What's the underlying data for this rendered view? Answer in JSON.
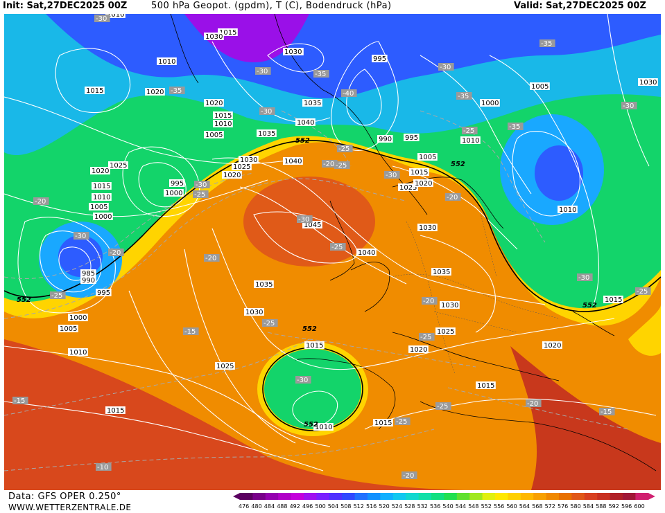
{
  "header": {
    "init": "Init: Sat,27DEC2025 00Z",
    "title": "500 hPa Geopot. (gpdm), T (C), Bodendruck (hPa)",
    "valid": "Valid: Sat,27DEC2025 00Z"
  },
  "footer": {
    "data_source": "Data: GFS OPER 0.250°",
    "website": "WWW.WETTERZENTRALE.DE"
  },
  "colors": {
    "deep_low": "#9a10e8",
    "low": "#2f4bff",
    "cold": "#19a8ff",
    "mid": "#13e070",
    "warm": "#ffe000",
    "hot": "#f08c00",
    "very_hot": "#d8401c",
    "isobar": "#ffffff",
    "isotherm": "#aaaaaa"
  },
  "scale": {
    "values": [
      "476",
      "480",
      "484",
      "488",
      "492",
      "496",
      "500",
      "504",
      "508",
      "512",
      "516",
      "520",
      "524",
      "528",
      "532",
      "536",
      "540",
      "544",
      "548",
      "552",
      "556",
      "560",
      "564",
      "568",
      "572",
      "576",
      "580",
      "584",
      "588",
      "592",
      "596",
      "600"
    ],
    "colors": [
      "#5a0060",
      "#78008a",
      "#9400b0",
      "#b000c8",
      "#c400dc",
      "#a010f0",
      "#7a20ff",
      "#5030ff",
      "#3048ff",
      "#2070ff",
      "#1090ff",
      "#10b0ff",
      "#10c8f0",
      "#10d8d0",
      "#10e0a8",
      "#10e080",
      "#20e050",
      "#60e030",
      "#a0e820",
      "#e0f010",
      "#ffe800",
      "#ffd000",
      "#ffb800",
      "#f8a000",
      "#f08800",
      "#e87000",
      "#e05818",
      "#d84020",
      "#c83020",
      "#b02028",
      "#a01838",
      "#d02070"
    ]
  },
  "map_labels": {
    "isobars": [
      {
        "text": "1010"
      },
      {
        "text": "1015"
      },
      {
        "text": "1030"
      },
      {
        "text": "1030"
      },
      {
        "text": "1010"
      },
      {
        "text": "1015"
      },
      {
        "text": "1020"
      },
      {
        "text": "1020"
      },
      {
        "text": "1035"
      },
      {
        "text": "995"
      },
      {
        "text": "1030"
      },
      {
        "text": "1005"
      },
      {
        "text": "1015"
      },
      {
        "text": "1010"
      },
      {
        "text": "1005"
      },
      {
        "text": "1040"
      },
      {
        "text": "1000"
      },
      {
        "text": "1035"
      },
      {
        "text": "990"
      },
      {
        "text": "995"
      },
      {
        "text": "1010"
      },
      {
        "text": "1020"
      },
      {
        "text": "1025"
      },
      {
        "text": "1025"
      },
      {
        "text": "1030"
      },
      {
        "text": "1040"
      },
      {
        "text": "1020"
      },
      {
        "text": "1015"
      },
      {
        "text": "995"
      },
      {
        "text": "1015"
      },
      {
        "text": "1000"
      },
      {
        "text": "1010"
      },
      {
        "text": "1005"
      },
      {
        "text": "1000"
      },
      {
        "text": "1045"
      },
      {
        "text": "1025"
      },
      {
        "text": "1020"
      },
      {
        "text": "1030"
      },
      {
        "text": "1040"
      },
      {
        "text": "985"
      },
      {
        "text": "990"
      },
      {
        "text": "995"
      },
      {
        "text": "1035"
      },
      {
        "text": "1035"
      },
      {
        "text": "1000"
      },
      {
        "text": "1005"
      },
      {
        "text": "1030"
      },
      {
        "text": "1030"
      },
      {
        "text": "1010"
      },
      {
        "text": "1015"
      },
      {
        "text": "1020"
      },
      {
        "text": "1025"
      },
      {
        "text": "1025"
      },
      {
        "text": "1015"
      },
      {
        "text": "1015"
      },
      {
        "text": "1010"
      },
      {
        "text": "1015"
      },
      {
        "text": "1005"
      },
      {
        "text": "1010"
      },
      {
        "text": "1020"
      },
      {
        "text": "1030"
      },
      {
        "text": "1015"
      }
    ],
    "isotherms": [
      {
        "text": "-30"
      },
      {
        "text": "-35"
      },
      {
        "text": "-30"
      },
      {
        "text": "-35"
      },
      {
        "text": "-40"
      },
      {
        "text": "-35"
      },
      {
        "text": "-30"
      },
      {
        "text": "-35"
      },
      {
        "text": "-30"
      },
      {
        "text": "-25"
      },
      {
        "text": "-35"
      },
      {
        "text": "-30"
      },
      {
        "text": "-25"
      },
      {
        "text": "-20"
      },
      {
        "text": "-25"
      },
      {
        "text": "-20"
      },
      {
        "text": "-25"
      },
      {
        "text": "-30"
      },
      {
        "text": "-20"
      },
      {
        "text": "-30"
      },
      {
        "text": "-20"
      },
      {
        "text": "-25"
      },
      {
        "text": "-30"
      },
      {
        "text": "-25"
      },
      {
        "text": "-20"
      },
      {
        "text": "-25"
      },
      {
        "text": "-15"
      },
      {
        "text": "-25"
      },
      {
        "text": "-30"
      },
      {
        "text": "-25"
      },
      {
        "text": "-20"
      },
      {
        "text": "-15"
      },
      {
        "text": "-15"
      },
      {
        "text": "-10"
      },
      {
        "text": "-20"
      },
      {
        "text": "-25"
      },
      {
        "text": "-30"
      },
      {
        "text": "-25"
      },
      {
        "text": "-20"
      },
      {
        "text": "-30"
      }
    ],
    "geopotential": [
      {
        "text": "552"
      },
      {
        "text": "552"
      },
      {
        "text": "552"
      },
      {
        "text": "552"
      },
      {
        "text": "552"
      },
      {
        "text": "552"
      }
    ]
  }
}
